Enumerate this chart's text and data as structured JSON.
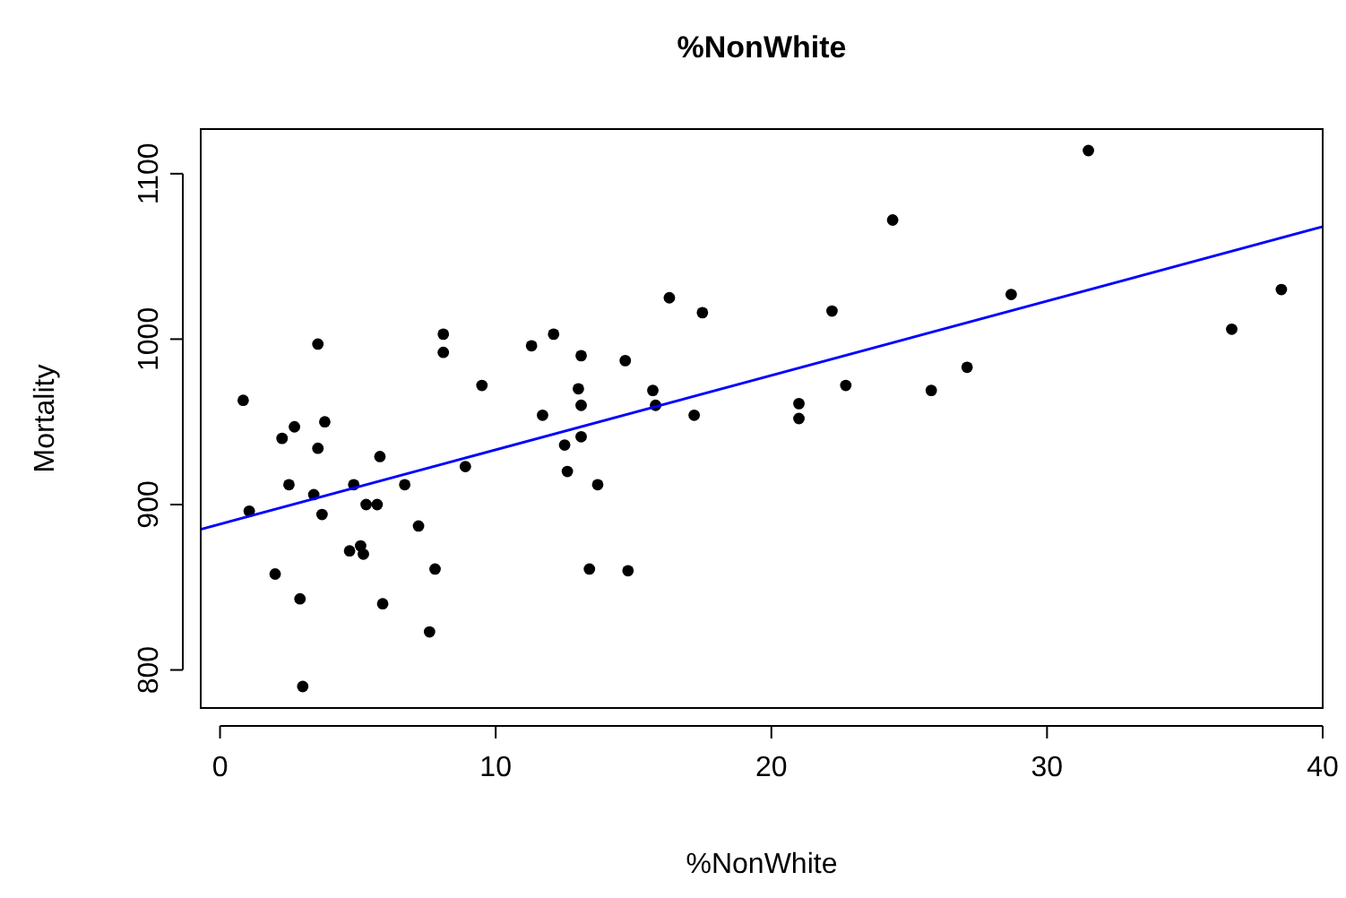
{
  "chart_data": {
    "type": "scatter",
    "title": "%NonWhite",
    "xlabel": "%NonWhite",
    "ylabel": "Mortality",
    "xlim": [
      -0.7,
      40
    ],
    "ylim": [
      777,
      1127
    ],
    "xticks": [
      0,
      10,
      20,
      30,
      40
    ],
    "yticks": [
      800,
      900,
      1000,
      1100
    ],
    "grid": false,
    "marker": "circle",
    "series": [
      {
        "color": "#000000",
        "x": [
          0.84,
          1.06,
          2.0,
          2.25,
          2.5,
          2.7,
          2.9,
          3.0,
          3.4,
          3.55,
          3.55,
          3.7,
          3.8,
          4.7,
          4.85,
          5.1,
          5.2,
          5.3,
          5.7,
          5.8,
          5.9,
          6.7,
          7.2,
          7.6,
          7.8,
          8.1,
          8.1,
          8.9,
          9.5,
          11.3,
          11.7,
          12.1,
          12.5,
          12.6,
          13.0,
          13.1,
          13.1,
          13.1,
          13.4,
          13.7,
          14.7,
          14.8,
          15.7,
          15.8,
          16.3,
          17.2,
          17.5,
          21.0,
          21.0,
          22.2,
          22.7,
          24.4,
          25.8,
          27.1,
          28.7,
          31.5,
          36.7,
          38.5
        ],
        "values": [
          963,
          896,
          858,
          940,
          912,
          947,
          843,
          790,
          906,
          997,
          934,
          894,
          950,
          872,
          912,
          875,
          870,
          900,
          900,
          929,
          840,
          912,
          887,
          823,
          861,
          1003,
          992,
          923,
          972,
          996,
          954,
          1003,
          936,
          920,
          970,
          990,
          960,
          941,
          861,
          912,
          987,
          860,
          969,
          960,
          1025,
          954,
          1016,
          961,
          952,
          1017,
          972,
          1072,
          969,
          983,
          1027,
          1114,
          1006,
          1030
        ]
      },
      {
        "type": "line",
        "color": "#0000ff",
        "marker": "none",
        "line_style": "solid",
        "x": [
          -0.7,
          40
        ],
        "values": [
          885,
          1068
        ]
      }
    ]
  }
}
